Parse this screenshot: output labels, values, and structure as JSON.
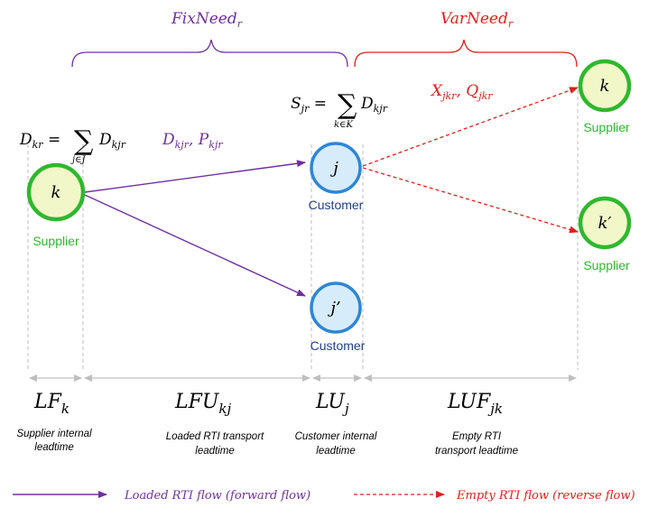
{
  "brackets": {
    "fix_need": {
      "text": "FixNeed",
      "sub": "r",
      "color": "#7030A0"
    },
    "var_need": {
      "text": "VarNeed",
      "sub": "r",
      "color": "#E0201C"
    }
  },
  "formulas": {
    "d_kr": {
      "lhs": "D",
      "lhs_sub": "kr",
      "sum_sub": "j∈J",
      "rhs": "D",
      "rhs_sub": "kjr"
    },
    "s_jr": {
      "lhs": "S",
      "lhs_sub": "jr",
      "sum_sub": "k∈K",
      "rhs": "D",
      "rhs_sub": "kjr"
    }
  },
  "flow_labels": {
    "forward": {
      "a": "D",
      "a_sub": "kjr",
      "b": "P",
      "b_sub": "kjr",
      "color": "#7030A0"
    },
    "reverse": {
      "a": "X",
      "a_sub": "jkr",
      "b": "Q",
      "b_sub": "jkr",
      "color": "#E0201C"
    }
  },
  "nodes": {
    "supplier_k": {
      "label": "k",
      "caption": "Supplier"
    },
    "customer_j": {
      "label": "j",
      "caption": "Customer"
    },
    "customer_j2": {
      "label": "j’",
      "caption": "Customer"
    },
    "supplier_k_top": {
      "label": "k",
      "caption": "Supplier"
    },
    "supplier_k_prime": {
      "label": "k′",
      "caption": "Supplier"
    }
  },
  "intervals": {
    "lf": {
      "symbol": "LF",
      "sub": "k",
      "desc": [
        "Supplier internal",
        "leadtime"
      ]
    },
    "lfu": {
      "symbol": "LFU",
      "sub": "kj",
      "desc": [
        "Loaded RTI transport",
        "leadtime"
      ]
    },
    "lu": {
      "symbol": "LU",
      "sub": "j",
      "desc": [
        "Customer internal",
        "leadtime"
      ]
    },
    "luf": {
      "symbol": "LUF",
      "sub": "jk",
      "desc": [
        "Empty RTI",
        "transport leadtime"
      ]
    }
  },
  "legend": {
    "loaded": "Loaded RTI flow (forward flow)",
    "empty": "Empty RTI flow (reverse flow)"
  },
  "colors": {
    "node_fill": "#F2F7C8",
    "supplier_ring": "#2EB82E",
    "customer_fill": "#D6ECFA",
    "customer_ring": "#2E86D4",
    "supplier_text": "#2EB82E",
    "customer_text": "#1F3E8A",
    "purple": "#7030A0",
    "red": "#E0201C",
    "guide": "#BFBFBF"
  }
}
